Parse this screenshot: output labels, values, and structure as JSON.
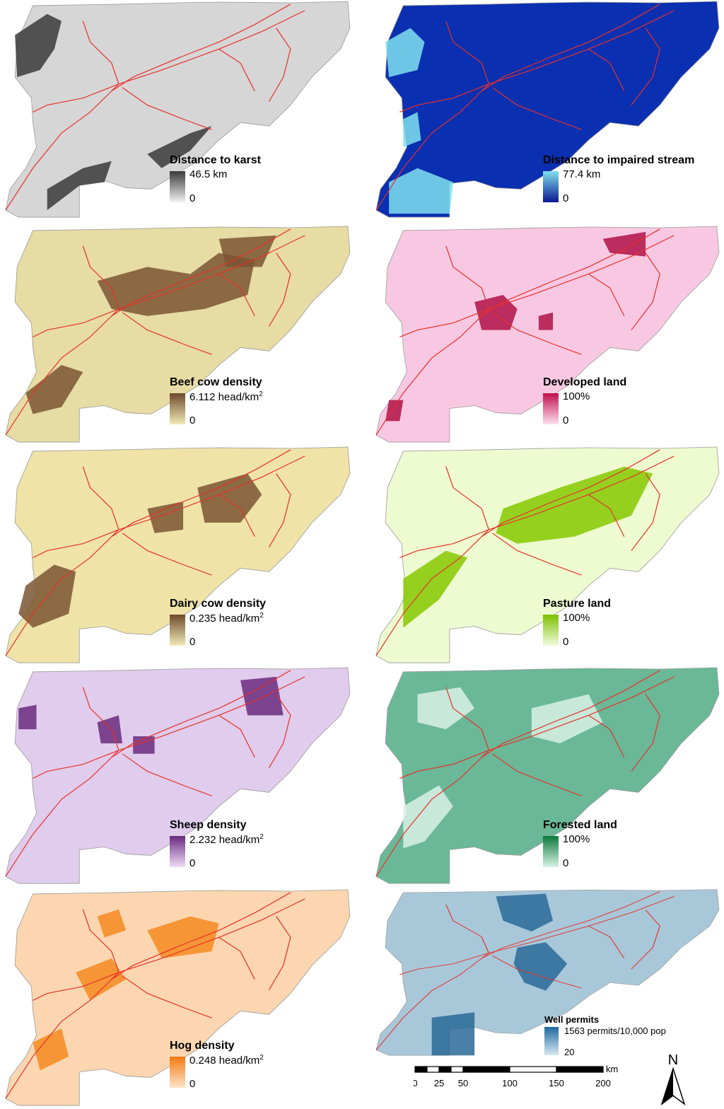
{
  "panels": [
    {
      "id": "karst",
      "title": "Distance to karst",
      "max_label": "46.5 km",
      "min_label": "0",
      "colors": {
        "base": "#d6d6d6",
        "dark": "#3a3a3a",
        "ramp_top": "#3a3a3a",
        "ramp_bottom": "#f2f2f2"
      }
    },
    {
      "id": "stream",
      "title": "Distance to impaired stream",
      "max_label": "77.4 km",
      "min_label": "0",
      "colors": {
        "base": "#0a2fb0",
        "dark": "#7fe0ee",
        "ramp_top": "#7fe0ee",
        "ramp_bottom": "#0a1890"
      }
    },
    {
      "id": "beef",
      "title": "Beef cow density",
      "max_label": "6.112 head/km",
      "max_sup": "2",
      "min_label": "0",
      "colors": {
        "base": "#e6dca4",
        "dark": "#7a5533",
        "ramp_top": "#6e4a2a",
        "ramp_bottom": "#f2eab8"
      }
    },
    {
      "id": "developed",
      "title": "Developed land",
      "max_label": "100%",
      "min_label": "0",
      "colors": {
        "base": "#f8c8e2",
        "dark": "#b01048",
        "ramp_top": "#c0104c",
        "ramp_bottom": "#fde0ef"
      }
    },
    {
      "id": "dairy",
      "title": "Dairy cow density",
      "max_label": "0.235 head/km",
      "max_sup": "2",
      "min_label": "0",
      "colors": {
        "base": "#efe3a8",
        "dark": "#7a5533",
        "ramp_top": "#6e4a2a",
        "ramp_bottom": "#f2eab8"
      }
    },
    {
      "id": "pasture",
      "title": "Pasture land",
      "max_label": "100%",
      "min_label": "0",
      "colors": {
        "base": "#eefad0",
        "dark": "#86c800",
        "ramp_top": "#7cc000",
        "ramp_bottom": "#f2fce0"
      }
    },
    {
      "id": "sheep",
      "title": "Sheep density",
      "max_label": "2.232 head/km",
      "max_sup": "2",
      "min_label": "0",
      "colors": {
        "base": "#e0ccec",
        "dark": "#6a2a7e",
        "ramp_top": "#6a2a7e",
        "ramp_bottom": "#eedcf6"
      }
    },
    {
      "id": "forest",
      "title": "Forested land",
      "max_label": "100%",
      "min_label": "0",
      "colors": {
        "base": "#6ab898",
        "dark": "#d8f0e4",
        "ramp_top": "#0a7a3a",
        "ramp_bottom": "#d8f2e6"
      }
    },
    {
      "id": "hog",
      "title": "Hog density",
      "max_label": "0.248 head/km",
      "max_sup": "2",
      "min_label": "0",
      "colors": {
        "base": "#fbd6b0",
        "dark": "#f58a20",
        "ramp_top": "#f57a10",
        "ramp_bottom": "#fde4c8"
      }
    },
    {
      "id": "wells",
      "title": "Well permits",
      "max_label": "1563 permits/10,000 pop",
      "min_label": "20",
      "colors": {
        "base": "#a8c8da",
        "dark": "#2a6a98",
        "ramp_top": "#1f6aa0",
        "ramp_bottom": "#d8e8f0"
      }
    }
  ],
  "road_color": "#e8302a",
  "scalebar": {
    "unit": "km",
    "ticks": [
      "0",
      "25",
      "50",
      "100",
      "150",
      "200"
    ]
  },
  "north_label": "N"
}
